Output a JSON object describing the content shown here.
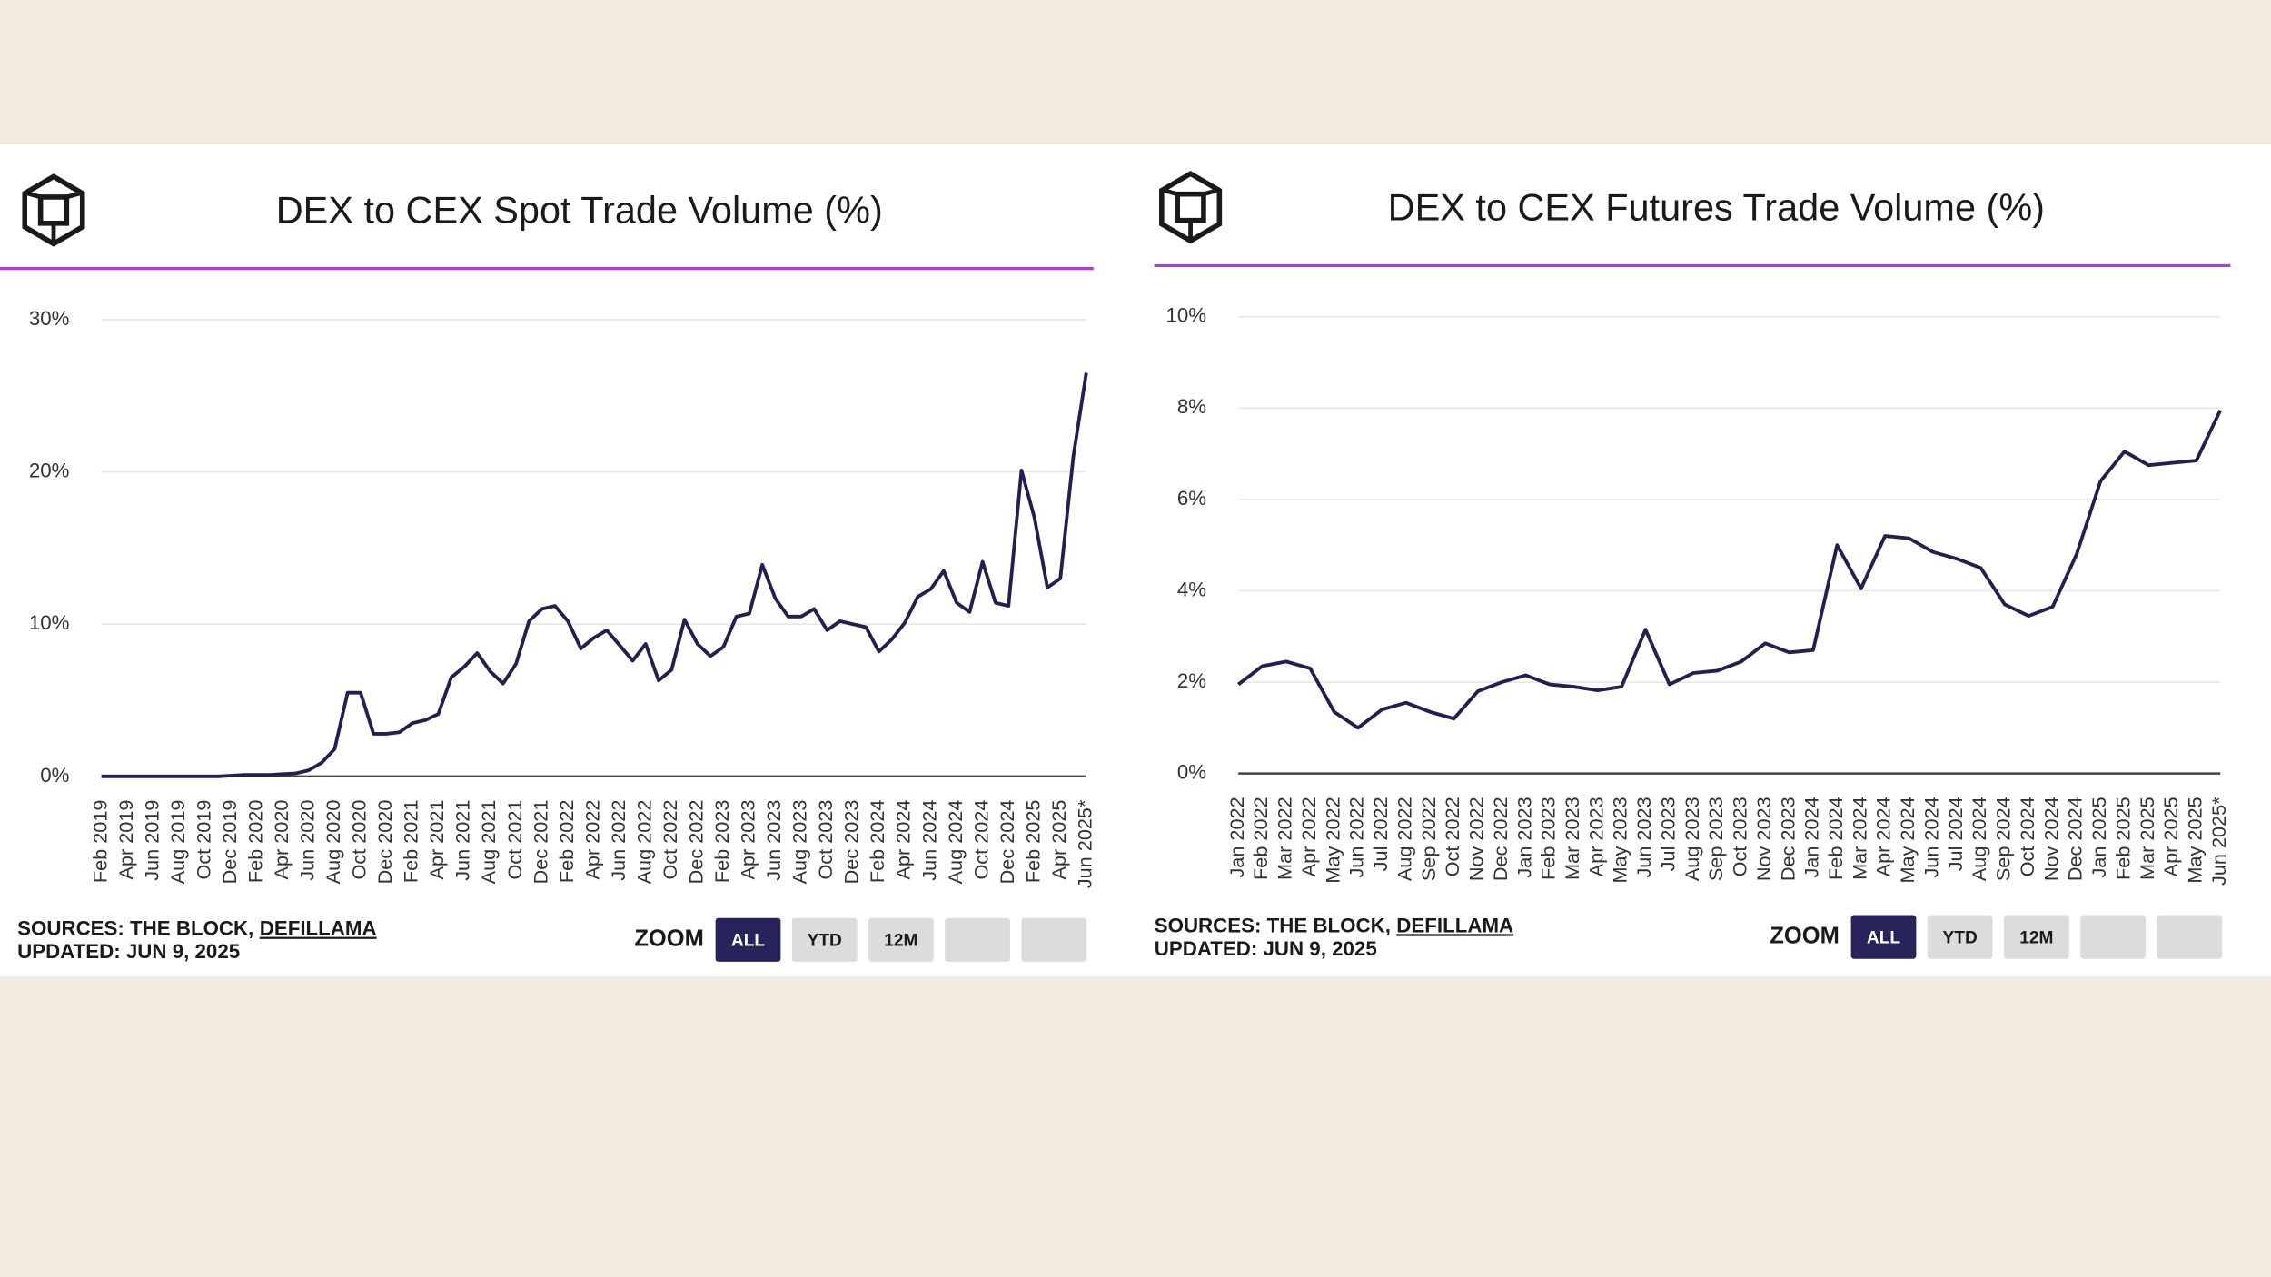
{
  "chart_data": [
    {
      "type": "line",
      "title": "DEX to CEX Spot Trade Volume (%)",
      "categories": [
        "Feb 2019",
        null,
        "Apr 2019",
        null,
        "Jun 2019",
        null,
        "Aug 2019",
        null,
        "Oct 2019",
        null,
        "Dec 2019",
        null,
        "Feb 2020",
        null,
        "Apr 2020",
        null,
        "Jun 2020",
        null,
        "Aug 2020",
        null,
        "Oct 2020",
        null,
        "Dec 2020",
        null,
        "Feb 2021",
        null,
        "Apr 2021",
        null,
        "Jun 2021",
        null,
        "Aug 2021",
        null,
        "Oct 2021",
        null,
        "Dec 2021",
        null,
        "Feb 2022",
        null,
        "Apr 2022",
        null,
        "Jun 2022",
        null,
        "Aug 2022",
        null,
        "Oct 2022",
        null,
        "Dec 2022",
        null,
        "Feb 2023",
        null,
        "Apr 2023",
        null,
        "Jun 2023",
        null,
        "Aug 2023",
        null,
        "Oct 2023",
        null,
        "Dec 2023",
        null,
        "Feb 2024",
        null,
        "Apr 2024",
        null,
        "Jun 2024",
        null,
        "Aug 2024",
        null,
        "Oct 2024",
        null,
        "Dec 2024",
        null,
        "Feb 2025",
        null,
        "Apr 2025",
        null,
        "Jun 2025*"
      ],
      "series": [
        {
          "name": "DEX to CEX Spot Trade Volume",
          "color": "#231f4f",
          "values": [
            0,
            0,
            0,
            0,
            0,
            0,
            0,
            0,
            0,
            0,
            0.05,
            0.1,
            0.1,
            0.1,
            0.15,
            0.2,
            0.4,
            0.9,
            1.8,
            5.5,
            5.5,
            2.8,
            2.8,
            2.9,
            3.5,
            3.7,
            4.1,
            6.5,
            7.2,
            8.1,
            6.9,
            6.1,
            7.4,
            10.2,
            11.0,
            11.2,
            10.2,
            8.4,
            9.1,
            9.6,
            8.6,
            7.6,
            8.7,
            6.3,
            7.0,
            10.3,
            8.7,
            7.9,
            8.5,
            10.5,
            10.7,
            13.9,
            11.7,
            10.5,
            10.5,
            11.0,
            9.6,
            10.2,
            10.0,
            9.8,
            8.2,
            9.0,
            10.1,
            11.8,
            12.3,
            13.5,
            11.4,
            10.8,
            14.1,
            11.4,
            11.2,
            20.1,
            17.0,
            12.4,
            13.0,
            21.0,
            26.5
          ]
        }
      ],
      "ylim": [
        0,
        30
      ],
      "yticks": [
        {
          "value": 0,
          "label": "0%"
        },
        {
          "value": 10,
          "label": "10%"
        },
        {
          "value": 20,
          "label": "20%"
        },
        {
          "value": 30,
          "label": "30%"
        }
      ],
      "grid": true,
      "source_prefix": "SOURCES: THE BLOCK,",
      "source_link": "DEFILLAMA",
      "updated": "UPDATED: JUN 9, 2025",
      "zoom_label": "ZOOM",
      "zoom_buttons": [
        "ALL",
        "YTD",
        "12M"
      ]
    },
    {
      "type": "line",
      "title": "DEX to CEX Futures Trade Volume (%)",
      "categories": [
        "Jan 2022",
        "Feb 2022",
        "Mar 2022",
        "Apr 2022",
        "May 2022",
        "Jun 2022",
        "Jul 2022",
        "Aug 2022",
        "Sep 2022",
        "Oct 2022",
        "Nov 2022",
        "Dec 2022",
        "Jan 2023",
        "Feb 2023",
        "Mar 2023",
        "Apr 2023",
        "May 2023",
        "Jun 2023",
        "Jul 2023",
        "Aug 2023",
        "Sep 2023",
        "Oct 2023",
        "Nov 2023",
        "Dec 2023",
        "Jan 2024",
        "Feb 2024",
        "Mar 2024",
        "Apr 2024",
        "May 2024",
        "Jun 2024",
        "Jul 2024",
        "Aug 2024",
        "Sep 2024",
        "Oct 2024",
        "Nov 2024",
        "Dec 2024",
        "Jan 2025",
        "Feb 2025",
        "Mar 2025",
        "Apr 2025",
        "May 2025",
        "Jun 2025*"
      ],
      "series": [
        {
          "name": "DEX to CEX Futures Trade Volume",
          "color": "#231f4f",
          "values": [
            1.95,
            2.35,
            2.45,
            2.3,
            1.35,
            1.0,
            1.4,
            1.55,
            1.35,
            1.2,
            1.8,
            2.0,
            2.15,
            1.95,
            1.9,
            1.82,
            1.9,
            3.15,
            1.95,
            2.2,
            2.25,
            2.45,
            2.85,
            2.65,
            2.7,
            5.0,
            4.05,
            5.2,
            5.15,
            4.85,
            4.7,
            4.5,
            3.7,
            3.45,
            3.65,
            4.8,
            6.4,
            7.05,
            6.75,
            6.8,
            6.85,
            7.95
          ]
        }
      ],
      "ylim": [
        0,
        10
      ],
      "yticks": [
        {
          "value": 0,
          "label": "0%"
        },
        {
          "value": 2,
          "label": "2%"
        },
        {
          "value": 4,
          "label": "4%"
        },
        {
          "value": 6,
          "label": "6%"
        },
        {
          "value": 8,
          "label": "8%"
        },
        {
          "value": 10,
          "label": "10%"
        }
      ],
      "grid": true,
      "source_prefix": "SOURCES: THE BLOCK,",
      "source_link": "DEFILLAMA",
      "updated": "UPDATED: JUN 9, 2025",
      "zoom_label": "ZOOM",
      "zoom_buttons": [
        "ALL",
        "YTD",
        "12M"
      ]
    }
  ]
}
